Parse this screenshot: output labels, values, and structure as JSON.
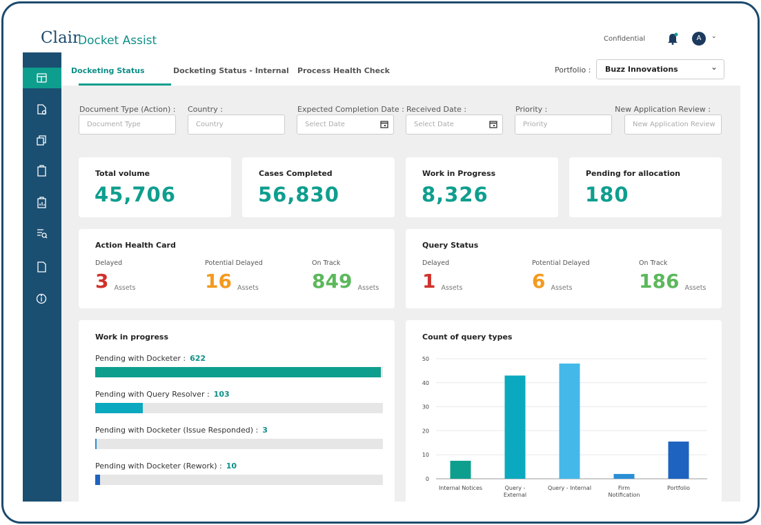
{
  "header": {
    "brand": "Clair",
    "product": "Docket Assist",
    "confidential": "Confidential",
    "avatar": "A"
  },
  "tabs": [
    "Docketing Status",
    "Docketing Status - Internal",
    "Process Health Check"
  ],
  "portfolio": {
    "label": "Portfolio :",
    "value": "Buzz Innovations"
  },
  "filters": [
    {
      "label": "Document Type (Action) :",
      "placeholder": "Document Type"
    },
    {
      "label": "Country :",
      "placeholder": "Country"
    },
    {
      "label": "Expected Completion Date :",
      "placeholder": "Select Date"
    },
    {
      "label": "Received Date :",
      "placeholder": "Select Date"
    },
    {
      "label": "Priority :",
      "placeholder": "Priority"
    },
    {
      "label": "New Application Review :",
      "placeholder": "New Application Review"
    }
  ],
  "kpis": [
    {
      "label": "Total volume",
      "value": "45,706"
    },
    {
      "label": "Cases Completed",
      "value": "56,830"
    },
    {
      "label": "Work in Progress",
      "value": "8,326"
    },
    {
      "label": "Pending for allocation",
      "value": "180"
    }
  ],
  "health_cards": [
    {
      "title": "Action Health Card",
      "items": [
        {
          "label": "Delayed",
          "value": 3,
          "unit": "Assets"
        },
        {
          "label": "Potential Delayed",
          "value": 16,
          "unit": "Assets"
        },
        {
          "label": "On Track",
          "value": 849,
          "unit": "Assets"
        }
      ]
    },
    {
      "title": "Query Status",
      "items": [
        {
          "label": "Delayed",
          "value": 1,
          "unit": "Assets"
        },
        {
          "label": "Potential Delayed",
          "value": 6,
          "unit": "Assets"
        },
        {
          "label": "On Track",
          "value": 186,
          "unit": "Assets"
        }
      ]
    }
  ],
  "work_in_progress": {
    "title": "Work in progress",
    "items": [
      {
        "label": "Pending with Docketer :",
        "value": 622,
        "color": "#0e9e8e"
      },
      {
        "label": "Pending with Query Resolver :",
        "value": 103,
        "color": "#0aa9bf"
      },
      {
        "label": "Pending with Docketer (Issue Responded) :",
        "value": 3,
        "color": "#2a8fd6"
      },
      {
        "label": "Pending with Docketer (Rework) :",
        "value": 10,
        "color": "#1f63c0"
      }
    ]
  },
  "chart_data": {
    "type": "bar",
    "title": "Count of query types",
    "categories": [
      "Internal Notices",
      "Query - External",
      "Query - Internal",
      "Firm Notification",
      "Portfolio"
    ],
    "values": [
      7.5,
      43,
      48,
      2,
      15.5
    ],
    "colors": [
      "#0e9e8e",
      "#0aa9bf",
      "#45b8ea",
      "#2a8fd6",
      "#1f63c0"
    ],
    "ylim": [
      0,
      50
    ],
    "yticks": [
      0,
      10,
      20,
      30,
      40,
      50
    ],
    "grid": true
  }
}
